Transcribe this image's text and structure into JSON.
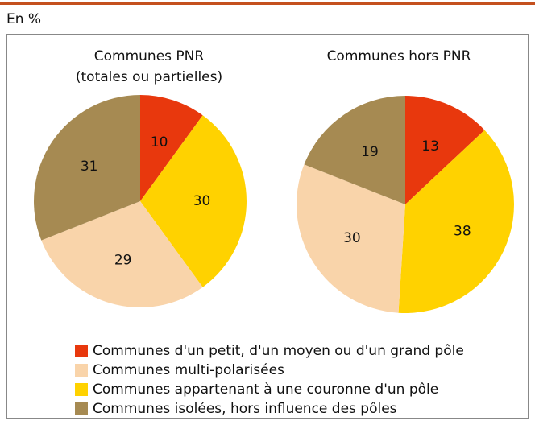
{
  "unit_label": "En %",
  "legend": {
    "labels": [
      "Communes d'un petit, d'un moyen ou d'un grand pôle",
      "Communes multi-polarisées",
      "Communes appartenant à une couronne d'un pôle",
      "Communes isolées, hors influence des pôles"
    ],
    "colors": [
      "#e8380d",
      "#f9d4aa",
      "#ffd200",
      "#a68a52"
    ]
  },
  "chart_data": [
    {
      "type": "pie",
      "title": [
        "Communes PNR",
        "(totales ou partielles)"
      ],
      "values": [
        10,
        29,
        30,
        31
      ]
    },
    {
      "type": "pie",
      "title": [
        "Communes hors PNR"
      ],
      "values": [
        13,
        30,
        38,
        19
      ]
    }
  ]
}
